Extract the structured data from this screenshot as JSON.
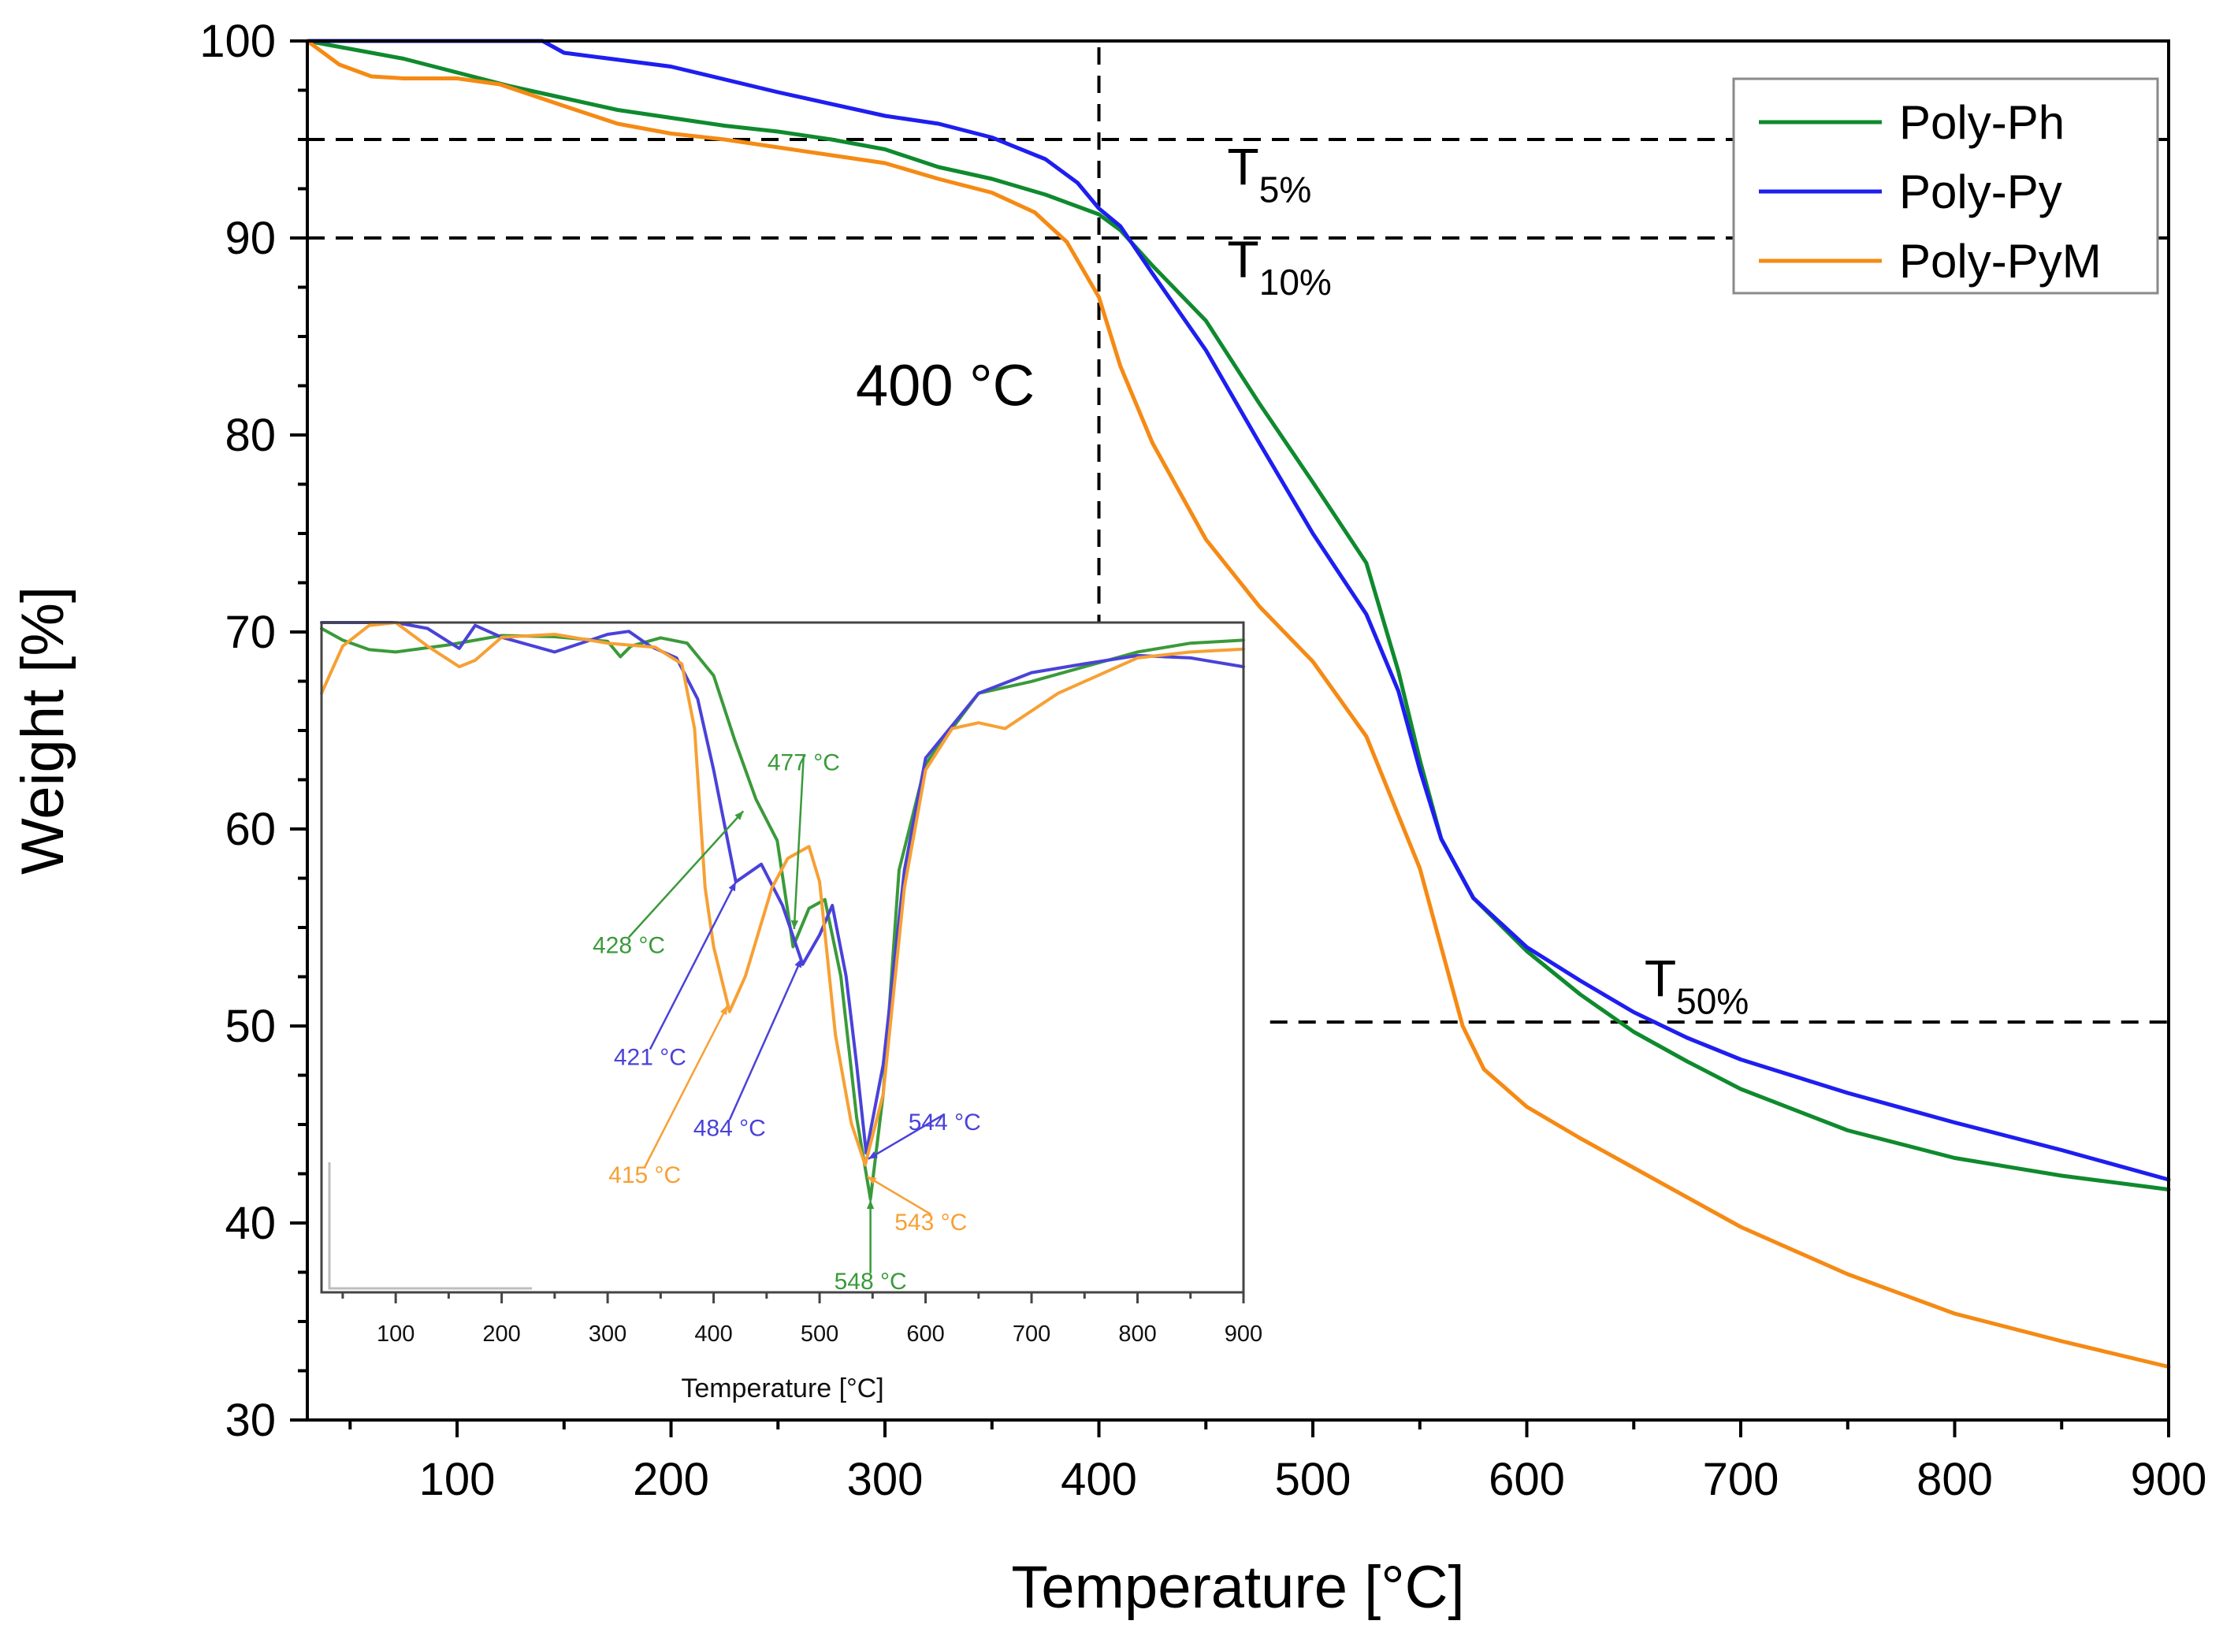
{
  "colors": {
    "Poly-Ph": "#0f8a2e",
    "Poly-Py": "#1e1ef0",
    "Poly-PyM": "#f58a14",
    "inset-Poly-Ph": "#3a9a3a",
    "inset-Poly-Py": "#4a42d8",
    "inset-Poly-PyM": "#f7a034",
    "axis": "#000000",
    "guide": "#000000"
  },
  "chart_data": [
    {
      "id": "main",
      "type": "line",
      "title": "",
      "xlabel": "Temperature [°C]",
      "ylabel": "Weight [%]",
      "xlim": [
        30,
        900
      ],
      "ylim": [
        30,
        100
      ],
      "xticks": [
        100,
        200,
        300,
        400,
        500,
        600,
        700,
        800,
        900
      ],
      "yticks": [
        30,
        40,
        50,
        60,
        70,
        80,
        90,
        100
      ],
      "grid": false,
      "legend_position": "top-right",
      "series": [
        {
          "name": "Poly-Ph",
          "points": [
            [
              30,
              100
            ],
            [
              50,
              99.6
            ],
            [
              75,
              99.1
            ],
            [
              100,
              98.4
            ],
            [
              125,
              97.7
            ],
            [
              150,
              97.1
            ],
            [
              175,
              96.5
            ],
            [
              200,
              96.1
            ],
            [
              225,
              95.7
            ],
            [
              250,
              95.4
            ],
            [
              275,
              95.0
            ],
            [
              300,
              94.5
            ],
            [
              325,
              93.6
            ],
            [
              350,
              93.0
            ],
            [
              375,
              92.2
            ],
            [
              400,
              91.2
            ],
            [
              410,
              90.4
            ],
            [
              425,
              88.6
            ],
            [
              450,
              85.8
            ],
            [
              475,
              81.6
            ],
            [
              500,
              77.6
            ],
            [
              525,
              73.5
            ],
            [
              540,
              68.0
            ],
            [
              550,
              63.5
            ],
            [
              560,
              59.5
            ],
            [
              575,
              56.5
            ],
            [
              600,
              53.8
            ],
            [
              625,
              51.6
            ],
            [
              650,
              49.7
            ],
            [
              675,
              48.2
            ],
            [
              700,
              46.8
            ],
            [
              750,
              44.7
            ],
            [
              800,
              43.3
            ],
            [
              850,
              42.4
            ],
            [
              900,
              41.7
            ]
          ]
        },
        {
          "name": "Poly-Py",
          "points": [
            [
              30,
              100
            ],
            [
              100,
              100
            ],
            [
              140,
              100
            ],
            [
              150,
              99.4
            ],
            [
              200,
              98.7
            ],
            [
              250,
              97.4
            ],
            [
              300,
              96.2
            ],
            [
              325,
              95.8
            ],
            [
              350,
              95.1
            ],
            [
              375,
              94.0
            ],
            [
              390,
              92.8
            ],
            [
              400,
              91.5
            ],
            [
              410,
              90.6
            ],
            [
              425,
              88.2
            ],
            [
              450,
              84.3
            ],
            [
              475,
              79.6
            ],
            [
              500,
              75.0
            ],
            [
              525,
              70.9
            ],
            [
              540,
              67.0
            ],
            [
              550,
              63.0
            ],
            [
              560,
              59.5
            ],
            [
              575,
              56.5
            ],
            [
              600,
              54.0
            ],
            [
              625,
              52.3
            ],
            [
              650,
              50.7
            ],
            [
              675,
              49.4
            ],
            [
              700,
              48.3
            ],
            [
              750,
              46.6
            ],
            [
              800,
              45.1
            ],
            [
              850,
              43.7
            ],
            [
              900,
              42.2
            ]
          ]
        },
        {
          "name": "Poly-PyM",
          "points": [
            [
              30,
              100
            ],
            [
              45,
              98.8
            ],
            [
              60,
              98.2
            ],
            [
              75,
              98.1
            ],
            [
              100,
              98.1
            ],
            [
              120,
              97.8
            ],
            [
              150,
              96.7
            ],
            [
              175,
              95.8
            ],
            [
              200,
              95.3
            ],
            [
              225,
              95.0
            ],
            [
              250,
              94.6
            ],
            [
              275,
              94.2
            ],
            [
              300,
              93.8
            ],
            [
              325,
              93.0
            ],
            [
              350,
              92.3
            ],
            [
              370,
              91.3
            ],
            [
              385,
              89.8
            ],
            [
              400,
              87.0
            ],
            [
              410,
              83.5
            ],
            [
              425,
              79.6
            ],
            [
              450,
              74.7
            ],
            [
              475,
              71.3
            ],
            [
              500,
              68.5
            ],
            [
              525,
              64.7
            ],
            [
              550,
              58.0
            ],
            [
              560,
              54.0
            ],
            [
              570,
              50.0
            ],
            [
              580,
              47.8
            ],
            [
              600,
              45.9
            ],
            [
              625,
              44.3
            ],
            [
              650,
              42.8
            ],
            [
              700,
              39.8
            ],
            [
              750,
              37.4
            ],
            [
              800,
              35.4
            ],
            [
              850,
              34.0
            ],
            [
              900,
              32.7
            ]
          ]
        }
      ],
      "reference_lines": [
        {
          "orientation": "horizontal",
          "y": 95,
          "x_from": 30,
          "x_to": 900
        },
        {
          "orientation": "horizontal",
          "y": 90,
          "x_from": 30,
          "x_to": 900
        },
        {
          "orientation": "horizontal",
          "y": 50.2,
          "x_from": 480,
          "x_to": 900
        },
        {
          "orientation": "vertical",
          "x": 400,
          "y_from": 70,
          "y_to": 100
        }
      ],
      "annotations": [
        {
          "id": "t5",
          "main": "T",
          "sub": "5%",
          "x": 460,
          "y": 92.7
        },
        {
          "id": "t10",
          "main": "T",
          "sub": "10%",
          "x": 460,
          "y": 88.0
        },
        {
          "id": "t50",
          "main": "T",
          "sub": "50%",
          "x": 655,
          "y": 51.5
        },
        {
          "id": "v400",
          "text": "400 °C",
          "x": 370,
          "y": 81.5
        }
      ]
    },
    {
      "id": "inset",
      "type": "line",
      "title": "",
      "xlabel": "Temperature [°C]",
      "ylabel": "",
      "xlim": [
        30,
        900
      ],
      "ylim": [
        0,
        100
      ],
      "xticks": [
        100,
        200,
        300,
        400,
        500,
        600,
        700,
        800,
        900
      ],
      "yticks": [],
      "grid": false,
      "series": [
        {
          "name": "Poly-Ph",
          "points": [
            [
              30,
              99
            ],
            [
              50,
              97
            ],
            [
              75,
              95.4
            ],
            [
              100,
              95
            ],
            [
              150,
              96.2
            ],
            [
              200,
              97.8
            ],
            [
              250,
              97.6
            ],
            [
              300,
              96.8
            ],
            [
              312,
              94.2
            ],
            [
              322,
              96
            ],
            [
              350,
              97.4
            ],
            [
              375,
              96.5
            ],
            [
              400,
              91
            ],
            [
              420,
              80
            ],
            [
              440,
              70
            ],
            [
              460,
              63
            ],
            [
              475,
              45
            ],
            [
              490,
              51.5
            ],
            [
              505,
              53
            ],
            [
              520,
              40
            ],
            [
              535,
              16
            ],
            [
              548,
              2.2
            ],
            [
              560,
              20
            ],
            [
              575,
              58
            ],
            [
              600,
              76
            ],
            [
              650,
              88
            ],
            [
              700,
              90
            ],
            [
              750,
              92.5
            ],
            [
              800,
              95
            ],
            [
              850,
              96.5
            ],
            [
              900,
              97
            ]
          ]
        },
        {
          "name": "Poly-Py",
          "points": [
            [
              30,
              100
            ],
            [
              75,
              100
            ],
            [
              100,
              100
            ],
            [
              130,
              99
            ],
            [
              160,
              95.6
            ],
            [
              175,
              99.5
            ],
            [
              200,
              97.5
            ],
            [
              250,
              95
            ],
            [
              300,
              98
            ],
            [
              320,
              98.5
            ],
            [
              340,
              96
            ],
            [
              365,
              94
            ],
            [
              385,
              87
            ],
            [
              400,
              75
            ],
            [
              421,
              56
            ],
            [
              445,
              59
            ],
            [
              465,
              52
            ],
            [
              484,
              42
            ],
            [
              500,
              47
            ],
            [
              512,
              52
            ],
            [
              525,
              40
            ],
            [
              535,
              25
            ],
            [
              544,
              10
            ],
            [
              560,
              25
            ],
            [
              580,
              58
            ],
            [
              600,
              77
            ],
            [
              650,
              88
            ],
            [
              700,
              91.5
            ],
            [
              750,
              93
            ],
            [
              800,
              94.4
            ],
            [
              850,
              94
            ],
            [
              900,
              92.5
            ]
          ]
        },
        {
          "name": "Poly-PyM",
          "points": [
            [
              30,
              88
            ],
            [
              50,
              96
            ],
            [
              75,
              99.5
            ],
            [
              100,
              100
            ],
            [
              130,
              96
            ],
            [
              160,
              92.5
            ],
            [
              175,
              93.6
            ],
            [
              200,
              97.5
            ],
            [
              250,
              98
            ],
            [
              300,
              96.5
            ],
            [
              345,
              95.8
            ],
            [
              370,
              93
            ],
            [
              382,
              82
            ],
            [
              392,
              55
            ],
            [
              400,
              45
            ],
            [
              415,
              34
            ],
            [
              430,
              40
            ],
            [
              455,
              55
            ],
            [
              470,
              60
            ],
            [
              490,
              62
            ],
            [
              500,
              56
            ],
            [
              515,
              30
            ],
            [
              530,
              15
            ],
            [
              543,
              8
            ],
            [
              560,
              20
            ],
            [
              580,
              55
            ],
            [
              600,
              75
            ],
            [
              625,
              82
            ],
            [
              650,
              83
            ],
            [
              675,
              82
            ],
            [
              700,
              85
            ],
            [
              725,
              88
            ],
            [
              750,
              90
            ],
            [
              800,
              94
            ],
            [
              850,
              95
            ],
            [
              900,
              95.5
            ]
          ]
        }
      ],
      "peak_labels": [
        {
          "text": "428 °C",
          "series": "Poly-Ph",
          "target": [
            428,
            68
          ],
          "at": [
            320,
            45
          ]
        },
        {
          "text": "477 °C",
          "series": "Poly-Ph",
          "target": [
            476,
            48
          ],
          "at": [
            485,
            76
          ]
        },
        {
          "text": "421 °C",
          "series": "Poly-Py",
          "target": [
            421,
            56
          ],
          "at": [
            340,
            26
          ]
        },
        {
          "text": "484 °C",
          "series": "Poly-Py",
          "target": [
            483,
            43
          ],
          "at": [
            415,
            14
          ]
        },
        {
          "text": "544 °C",
          "series": "Poly-Py",
          "target": [
            546,
            9
          ],
          "at": [
            618,
            15
          ]
        },
        {
          "text": "415 °C",
          "series": "Poly-PyM",
          "target": [
            413,
            35
          ],
          "at": [
            335,
            6
          ]
        },
        {
          "text": "543 °C",
          "series": "Poly-PyM",
          "target": [
            545,
            6
          ],
          "at": [
            605,
            -2
          ]
        },
        {
          "text": "548 °C",
          "series": "Poly-Ph",
          "target": [
            548,
            2
          ],
          "at": [
            548,
            -12
          ]
        }
      ]
    }
  ]
}
